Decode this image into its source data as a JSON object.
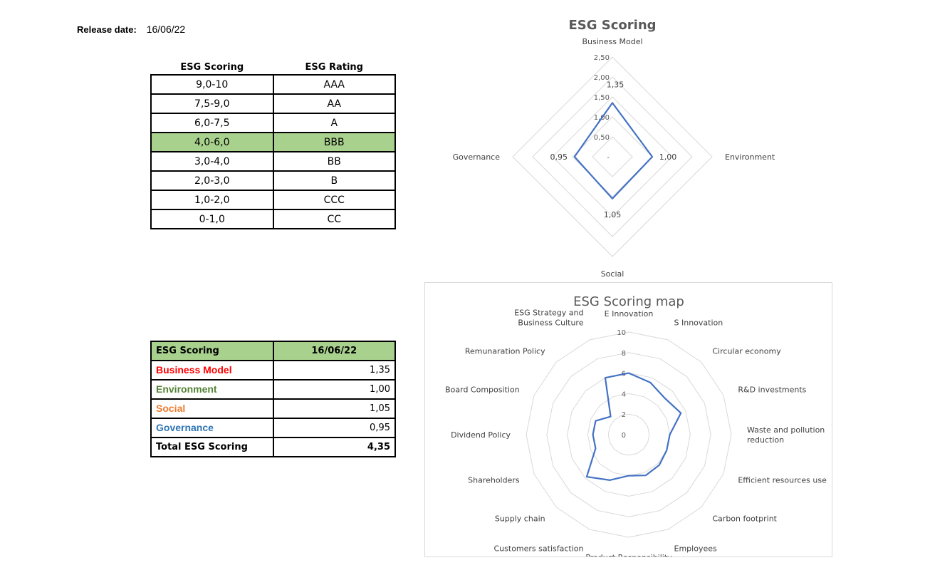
{
  "release": {
    "label": "Release date:",
    "date": "16/06/22"
  },
  "rating_table": {
    "headers": [
      "ESG Scoring",
      "ESG Rating"
    ],
    "rows": [
      {
        "range": "9,0-10",
        "rating": "AAA"
      },
      {
        "range": "7,5-9,0",
        "rating": "AA"
      },
      {
        "range": "6,0-7,5",
        "rating": "A"
      },
      {
        "range": "4,0-6,0",
        "rating": "BBB",
        "highlight": true
      },
      {
        "range": "3,0-4,0",
        "rating": "BB"
      },
      {
        "range": "2,0-3,0",
        "rating": "B"
      },
      {
        "range": "1,0-2,0",
        "rating": "CCC"
      },
      {
        "range": "0-1,0",
        "rating": "CC"
      }
    ],
    "highlight_color": "#a9d18e"
  },
  "summary_table": {
    "header": {
      "label": "ESG Scoring",
      "date": "16/06/22"
    },
    "rows": [
      {
        "name": "Business Model",
        "value": "1,35",
        "color": "#ff0000"
      },
      {
        "name": "Environment",
        "value": "1,00",
        "color": "#548235"
      },
      {
        "name": "Social",
        "value": "1,05",
        "color": "#ed7d31"
      },
      {
        "name": "Governance",
        "value": "0,95",
        "color": "#2e75b6"
      }
    ],
    "total": {
      "name": "Total ESG Scoring",
      "value": "4,35"
    }
  },
  "chart_data": [
    {
      "type": "radar",
      "title": "ESG Scoring",
      "categories": [
        "Business Model",
        "Environment",
        "Social",
        "Governance"
      ],
      "values": [
        1.35,
        1.0,
        1.05,
        0.95
      ],
      "value_labels": [
        "1,35",
        "1,00",
        "1,05",
        "0,95"
      ],
      "ticks": [
        0,
        0.5,
        1.0,
        1.5,
        2.0,
        2.5
      ],
      "tick_labels": [
        "-",
        "0,50",
        "1,00",
        "1,50",
        "2,00",
        "2,50"
      ],
      "range": [
        0,
        2.5
      ],
      "line_color": "#4472c4",
      "grid_color": "#d9d9d9"
    },
    {
      "type": "radar",
      "title": "ESG Scoring map",
      "categories": [
        "E Innovation",
        "S Innovation",
        "Circular economy",
        "R&D investments",
        "Waste and pollution reduction",
        "Efficient resources use",
        "Carbon footprint",
        "Employees",
        "Product Responsibility",
        "Customers satisfaction",
        "Supply chain",
        "Shareholders",
        "Dividend Policy",
        "Board Composition",
        "Remunaration Policy",
        "ESG Strategy and Business Culture"
      ],
      "values": [
        6.0,
        5.5,
        5.0,
        5.5,
        4.0,
        4.0,
        4.2,
        4.3,
        4.0,
        4.8,
        5.8,
        3.5,
        3.5,
        3.5,
        2.5,
        6.0
      ],
      "ticks": [
        0,
        2,
        4,
        6,
        8,
        10
      ],
      "tick_labels": [
        "0",
        "2",
        "4",
        "6",
        "8",
        "10"
      ],
      "range": [
        0,
        10
      ],
      "line_color": "#4472c4",
      "grid_color": "#d9d9d9"
    }
  ]
}
